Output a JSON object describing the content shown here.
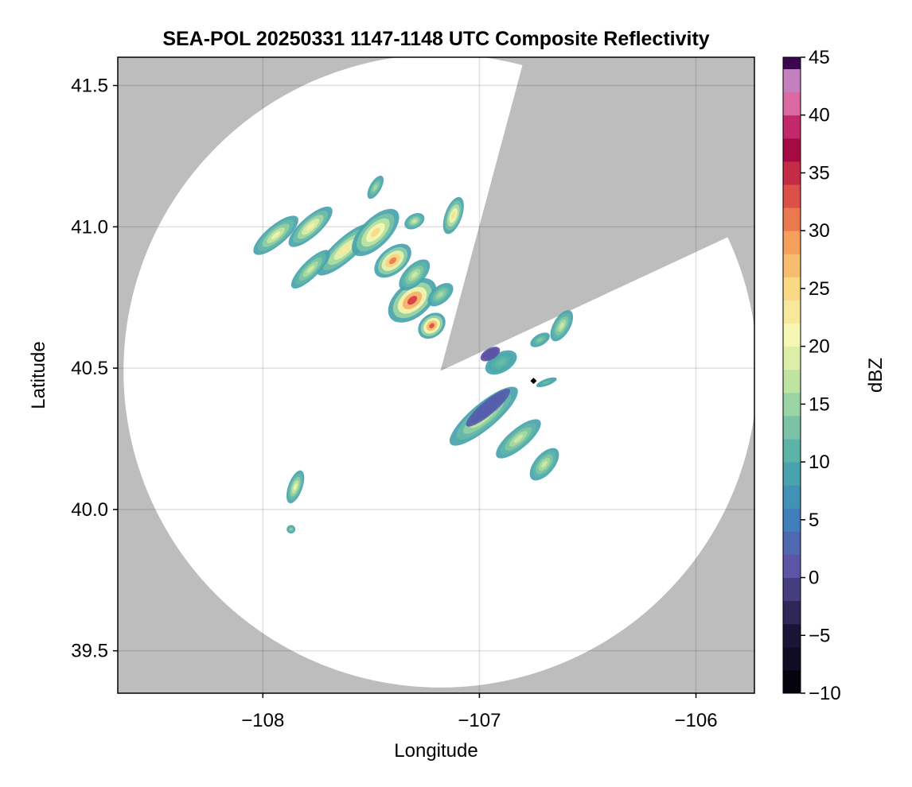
{
  "chart_data": {
    "type": "heatmap",
    "title": "SEA-POL 20250331 1147-1148 UTC Composite Reflectivity",
    "xlabel": "Longitude",
    "ylabel": "Latitude",
    "xlim": [
      -108.67,
      -105.73
    ],
    "ylim": [
      39.35,
      41.6
    ],
    "xticks": [
      -108,
      -107,
      -106
    ],
    "yticks": [
      39.5,
      40.0,
      40.5,
      41.0,
      41.5
    ],
    "grid": true,
    "background_color": "#bdbdbd",
    "coverage_color": "#ffffff",
    "radar_center": [
      -107.18,
      40.49
    ],
    "radar_range_deg_lat": 1.12,
    "blocked_sectors": [
      {
        "from_bearing_deg": 15,
        "to_bearing_deg": 65
      }
    ],
    "colorbar": {
      "label": "dBZ",
      "min": -10,
      "max": 45,
      "ticks": [
        -10,
        -5,
        0,
        5,
        10,
        15,
        20,
        25,
        30,
        35,
        40,
        45
      ],
      "colormap": "spectral_reversed",
      "step": 2
    },
    "marker": {
      "lon": -106.75,
      "lat": 40.455,
      "shape": "diamond",
      "color": "#000000"
    },
    "echo_cells": [
      {
        "lon": -107.94,
        "lat": 40.97,
        "a": 0.13,
        "b": 0.035,
        "angle": -40,
        "peak": 20
      },
      {
        "lon": -107.78,
        "lat": 41.0,
        "a": 0.13,
        "b": 0.035,
        "angle": -42,
        "peak": 22
      },
      {
        "lon": -107.62,
        "lat": 40.92,
        "a": 0.17,
        "b": 0.04,
        "angle": -42,
        "peak": 23
      },
      {
        "lon": -107.78,
        "lat": 40.85,
        "a": 0.12,
        "b": 0.03,
        "angle": -45,
        "peak": 18
      },
      {
        "lon": -107.48,
        "lat": 40.98,
        "a": 0.14,
        "b": 0.05,
        "angle": -45,
        "peak": 25
      },
      {
        "lon": -107.4,
        "lat": 40.88,
        "a": 0.1,
        "b": 0.045,
        "angle": -40,
        "peak": 31
      },
      {
        "lon": -107.31,
        "lat": 40.74,
        "a": 0.13,
        "b": 0.06,
        "angle": -40,
        "peak": 34
      },
      {
        "lon": -107.22,
        "lat": 40.65,
        "a": 0.07,
        "b": 0.04,
        "angle": -40,
        "peak": 33
      },
      {
        "lon": -107.3,
        "lat": 40.83,
        "a": 0.09,
        "b": 0.035,
        "angle": -45,
        "peak": 18
      },
      {
        "lon": -107.18,
        "lat": 40.76,
        "a": 0.07,
        "b": 0.03,
        "angle": -40,
        "peak": 16
      },
      {
        "lon": -107.12,
        "lat": 41.04,
        "a": 0.09,
        "b": 0.03,
        "angle": -70,
        "peak": 24
      },
      {
        "lon": -107.3,
        "lat": 41.02,
        "a": 0.05,
        "b": 0.025,
        "angle": -30,
        "peak": 18
      },
      {
        "lon": -107.48,
        "lat": 41.14,
        "a": 0.06,
        "b": 0.02,
        "angle": -60,
        "peak": 16
      },
      {
        "lon": -107.85,
        "lat": 40.08,
        "a": 0.08,
        "b": 0.025,
        "angle": -70,
        "peak": 20
      },
      {
        "lon": -107.87,
        "lat": 39.93,
        "a": 0.02,
        "b": 0.015,
        "angle": 0,
        "peak": 15
      },
      {
        "lon": -106.98,
        "lat": 40.33,
        "a": 0.2,
        "b": 0.045,
        "angle": -40,
        "peak": 20
      },
      {
        "lon": -106.96,
        "lat": 40.36,
        "a": 0.13,
        "b": 0.025,
        "angle": -40,
        "peak": 2
      },
      {
        "lon": -106.82,
        "lat": 40.25,
        "a": 0.13,
        "b": 0.035,
        "angle": -40,
        "peak": 18
      },
      {
        "lon": -106.7,
        "lat": 40.16,
        "a": 0.09,
        "b": 0.035,
        "angle": -50,
        "peak": 18
      },
      {
        "lon": -106.9,
        "lat": 40.52,
        "a": 0.08,
        "b": 0.035,
        "angle": -30,
        "peak": 12
      },
      {
        "lon": -106.95,
        "lat": 40.55,
        "a": 0.05,
        "b": 0.02,
        "angle": -30,
        "peak": 1
      },
      {
        "lon": -106.62,
        "lat": 40.65,
        "a": 0.08,
        "b": 0.03,
        "angle": -60,
        "peak": 18
      },
      {
        "lon": -106.72,
        "lat": 40.6,
        "a": 0.05,
        "b": 0.02,
        "angle": -30,
        "peak": 14
      },
      {
        "lon": -106.69,
        "lat": 40.45,
        "a": 0.05,
        "b": 0.012,
        "angle": -20,
        "peak": 12
      }
    ]
  }
}
